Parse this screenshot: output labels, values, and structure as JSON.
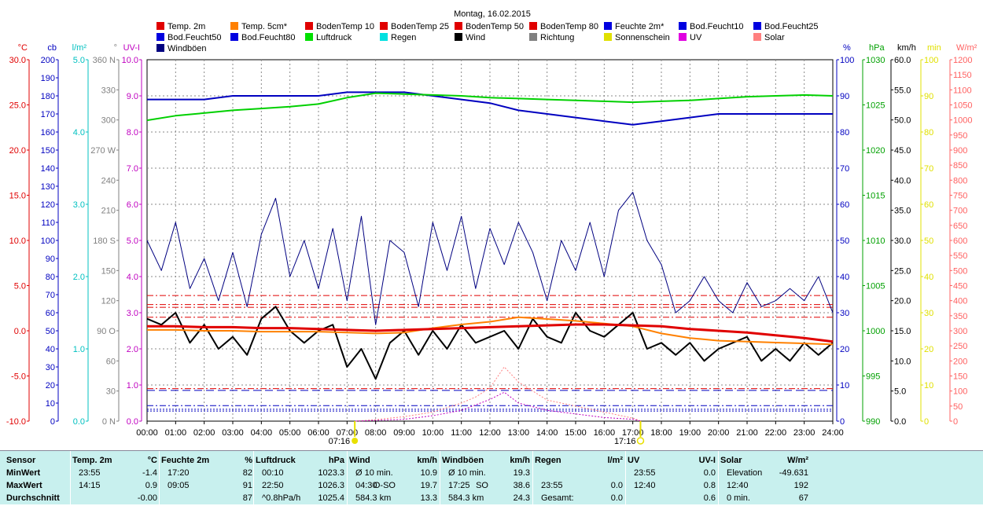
{
  "chart_data": {
    "type": "line",
    "title": "Montag, 16.02.2015",
    "x_ticks": [
      "00:00",
      "01:00",
      "02:00",
      "03:00",
      "04:00",
      "05:00",
      "06:00",
      "07:00",
      "08:00",
      "09:00",
      "10:00",
      "11:00",
      "12:00",
      "13:00",
      "14:00",
      "15:00",
      "16:00",
      "17:00",
      "18:00",
      "19:00",
      "20:00",
      "21:00",
      "22:00",
      "23:00",
      "24:00"
    ],
    "sunrise_label": "07:16",
    "sunset_label": "17:16",
    "legend": [
      {
        "label": "Temp. 2m",
        "color": "#e00000"
      },
      {
        "label": "Temp. 5cm*",
        "color": "#ff8000"
      },
      {
        "label": "BodenTemp 10",
        "color": "#e00000"
      },
      {
        "label": "BodenTemp 25",
        "color": "#e00000"
      },
      {
        "label": "BodenTemp 50",
        "color": "#e00000"
      },
      {
        "label": "BodenTemp 80",
        "color": "#e00000"
      },
      {
        "label": "Feuchte 2m*",
        "color": "#0000e0"
      },
      {
        "label": "Bod.Feucht10",
        "color": "#0000e0"
      },
      {
        "label": "Bod.Feucht25",
        "color": "#0000e0"
      },
      {
        "label": "Bod.Feucht50",
        "color": "#0000e0"
      },
      {
        "label": "Bod.Feucht80",
        "color": "#0000e0"
      },
      {
        "label": "Luftdruck",
        "color": "#00e000"
      },
      {
        "label": "Regen",
        "color": "#00e0e0"
      },
      {
        "label": "Wind",
        "color": "#000000"
      },
      {
        "label": "Richtung",
        "color": "#808080"
      },
      {
        "label": "Sonnenschein",
        "color": "#e0e000"
      },
      {
        "label": "UV",
        "color": "#e000e0"
      },
      {
        "label": "Solar",
        "color": "#ff8080"
      },
      {
        "label": "Windböen",
        "color": "#000080"
      }
    ],
    "axes": [
      {
        "unit": "°C",
        "ticks": [
          "30.0",
          "25.0",
          "20.0",
          "15.0",
          "10.0",
          "5.0",
          "0.0",
          "-5.0",
          "-10.0"
        ],
        "color": "#e00000",
        "range": [
          -10,
          30
        ]
      },
      {
        "unit": "cb",
        "ticks": [
          "200",
          "190",
          "180",
          "170",
          "160",
          "150",
          "140",
          "130",
          "120",
          "110",
          "100",
          "90",
          "80",
          "70",
          "60",
          "50",
          "40",
          "30",
          "20",
          "10",
          "0"
        ],
        "color": "#0000c0",
        "range": [
          0,
          200
        ]
      },
      {
        "unit": "l/m²",
        "ticks": [
          "5.0",
          "4.0",
          "3.0",
          "2.0",
          "1.0",
          "0.0"
        ],
        "color": "#00c0c0",
        "range": [
          0,
          5
        ]
      },
      {
        "unit": "°",
        "ticks": [
          "360 N",
          "330",
          "300",
          "270 W",
          "240",
          "210",
          "180 S",
          "150",
          "120",
          "90 O",
          "60",
          "30",
          "0 N"
        ],
        "color": "#808080",
        "range": [
          0,
          360
        ]
      },
      {
        "unit": "UV-I",
        "ticks": [
          "10.0",
          "9.0",
          "8.0",
          "7.0",
          "6.0",
          "5.0",
          "4.0",
          "3.0",
          "2.0",
          "1.0",
          "0.0"
        ],
        "color": "#c000c0",
        "range": [
          0,
          10
        ]
      },
      {
        "unit": "%",
        "ticks": [
          "100",
          "90",
          "80",
          "70",
          "60",
          "50",
          "40",
          "30",
          "20",
          "10",
          "0"
        ],
        "color": "#0000c0",
        "range": [
          0,
          100
        ]
      },
      {
        "unit": "hPa",
        "ticks": [
          "1030",
          "1025",
          "1020",
          "1015",
          "1010",
          "1005",
          "1000",
          "995",
          "990"
        ],
        "color": "#00a000",
        "range": [
          990,
          1030
        ]
      },
      {
        "unit": "km/h",
        "ticks": [
          "60.0",
          "55.0",
          "50.0",
          "45.0",
          "40.0",
          "35.0",
          "30.0",
          "25.0",
          "20.0",
          "15.0",
          "10.0",
          "5.0",
          "0.0"
        ],
        "color": "#000000",
        "range": [
          0,
          60
        ]
      },
      {
        "unit": "min",
        "ticks": [
          "100",
          "90",
          "80",
          "70",
          "60",
          "50",
          "40",
          "30",
          "20",
          "10",
          "0"
        ],
        "color": "#e0e000",
        "range": [
          0,
          100
        ]
      },
      {
        "unit": "W/m²",
        "ticks": [
          "1200",
          "1150",
          "1100",
          "1050",
          "1000",
          "950",
          "900",
          "850",
          "800",
          "750",
          "700",
          "650",
          "600",
          "550",
          "500",
          "450",
          "400",
          "350",
          "300",
          "250",
          "200",
          "150",
          "100",
          "50",
          "0"
        ],
        "color": "#ff6060",
        "range": [
          0,
          1200
        ]
      }
    ],
    "series": [
      {
        "name": "Luftdruck",
        "unit": "hPa",
        "x_hours": [
          0,
          1,
          2,
          3,
          4,
          5,
          6,
          7,
          8,
          9,
          10,
          11,
          12,
          13,
          14,
          15,
          16,
          17,
          18,
          19,
          20,
          21,
          22,
          23,
          24
        ],
        "values": [
          1023.3,
          1023.8,
          1024.1,
          1024.4,
          1024.6,
          1024.8,
          1025.1,
          1025.8,
          1026.3,
          1026.2,
          1026.1,
          1026.0,
          1025.8,
          1025.7,
          1025.6,
          1025.5,
          1025.4,
          1025.3,
          1025.4,
          1025.5,
          1025.7,
          1025.9,
          1026.0,
          1026.1,
          1026.0
        ]
      },
      {
        "name": "Feuchte 2m*",
        "unit": "%",
        "x_hours": [
          0,
          1,
          2,
          3,
          4,
          5,
          6,
          7,
          8,
          9,
          10,
          11,
          12,
          13,
          14,
          15,
          16,
          17,
          18,
          19,
          20,
          21,
          22,
          23,
          24
        ],
        "values": [
          89,
          89,
          89,
          90,
          90,
          90,
          90,
          91,
          91,
          91,
          90,
          89,
          88,
          86,
          85,
          84,
          83,
          82,
          83,
          84,
          85,
          85,
          85,
          85,
          85
        ]
      },
      {
        "name": "Temp. 2m",
        "unit": "°C",
        "x_hours": [
          0,
          1,
          2,
          3,
          4,
          5,
          6,
          7,
          8,
          9,
          10,
          11,
          12,
          13,
          14,
          15,
          16,
          17,
          18,
          19,
          20,
          21,
          22,
          23,
          24
        ],
        "values": [
          0.5,
          0.5,
          0.4,
          0.4,
          0.3,
          0.3,
          0.2,
          0.1,
          0.0,
          0.1,
          0.2,
          0.3,
          0.4,
          0.5,
          0.6,
          0.7,
          0.7,
          0.6,
          0.5,
          0.2,
          0.0,
          -0.2,
          -0.5,
          -0.8,
          -1.2
        ]
      },
      {
        "name": "Temp. 5cm*",
        "unit": "°C",
        "x_hours": [
          0,
          1,
          2,
          3,
          4,
          5,
          6,
          7,
          8,
          9,
          10,
          11,
          12,
          13,
          14,
          15,
          16,
          17,
          18,
          19,
          20,
          21,
          22,
          23,
          24
        ],
        "values": [
          0.1,
          0.1,
          0.0,
          0.0,
          -0.1,
          -0.1,
          -0.1,
          -0.2,
          -0.3,
          -0.2,
          0.3,
          0.7,
          1.0,
          1.5,
          1.3,
          1.1,
          0.8,
          0.5,
          -0.3,
          -0.8,
          -1.1,
          -1.2,
          -1.3,
          -1.4,
          -1.5
        ]
      },
      {
        "name": "Wind",
        "unit": "km/h",
        "x_hours": [
          0,
          0.5,
          1,
          1.5,
          2,
          2.5,
          3,
          3.5,
          4,
          4.5,
          5,
          5.5,
          6,
          6.5,
          7,
          7.5,
          8,
          8.5,
          9,
          9.5,
          10,
          10.5,
          11,
          11.5,
          12,
          12.5,
          13,
          13.5,
          14,
          14.5,
          15,
          15.5,
          16,
          16.5,
          17,
          17.5,
          18,
          18.5,
          19,
          19.5,
          20,
          20.5,
          21,
          21.5,
          22,
          22.5,
          23,
          23.5,
          24
        ],
        "values": [
          17,
          16,
          18,
          13,
          16,
          12,
          14,
          11,
          17,
          19,
          15,
          13,
          15,
          16,
          9,
          12,
          7,
          13,
          15,
          11,
          15,
          12,
          16,
          13,
          14,
          15,
          12,
          17,
          14,
          13,
          18,
          15,
          14,
          16,
          18,
          12,
          13,
          11,
          13,
          10,
          12,
          13,
          14,
          10,
          12,
          10,
          13,
          11,
          13
        ]
      },
      {
        "name": "Windböen",
        "unit": "km/h",
        "x_hours": [
          0,
          0.5,
          1,
          1.5,
          2,
          2.5,
          3,
          3.5,
          4,
          4.5,
          5,
          5.5,
          6,
          6.5,
          7,
          7.5,
          8,
          8.5,
          9,
          9.5,
          10,
          10.5,
          11,
          11.5,
          12,
          12.5,
          13,
          13.5,
          14,
          14.5,
          15,
          15.5,
          16,
          16.5,
          17,
          17.5,
          18,
          18.5,
          19,
          19.5,
          20,
          20.5,
          21,
          21.5,
          22,
          22.5,
          23,
          23.5,
          24
        ],
        "values": [
          30,
          25,
          33,
          22,
          27,
          20,
          28,
          19,
          31,
          37,
          24,
          30,
          22,
          32,
          20,
          34,
          16,
          30,
          28,
          19,
          33,
          25,
          34,
          22,
          32,
          26,
          33,
          28,
          20,
          30,
          25,
          33,
          24,
          35,
          38,
          30,
          26,
          18,
          20,
          24,
          20,
          18,
          23,
          19,
          20,
          22,
          20,
          24,
          18
        ]
      },
      {
        "name": "Solar",
        "unit": "W/m²",
        "x_hours": [
          7.3,
          8,
          9,
          10,
          11,
          11.5,
          12,
          12.5,
          13,
          13.5,
          14,
          15,
          16,
          17,
          17.3
        ],
        "values": [
          0,
          5,
          15,
          30,
          60,
          80,
          110,
          180,
          130,
          100,
          70,
          50,
          30,
          10,
          0
        ]
      },
      {
        "name": "UV",
        "unit": "UV-I",
        "x_hours": [
          7.3,
          9,
          10,
          11,
          12,
          12.5,
          13,
          13.5,
          14,
          15,
          16,
          17,
          17.3
        ],
        "values": [
          0,
          0.05,
          0.15,
          0.3,
          0.6,
          0.8,
          0.5,
          0.4,
          0.3,
          0.2,
          0.1,
          0.05,
          0
        ]
      }
    ],
    "reference_lines": [
      {
        "name": "BodenTemp 10",
        "unit": "°C",
        "value": 3.9,
        "style": "dash-dot"
      },
      {
        "name": "BodenTemp 25",
        "unit": "°C",
        "value": 2.6,
        "style": "dash-dot"
      },
      {
        "name": "BodenTemp 50",
        "unit": "°C",
        "value": 1.5,
        "style": "dash-dot"
      },
      {
        "name": "BodenTemp 80",
        "unit": "°C",
        "value": 2.9,
        "style": "dash-dot"
      },
      {
        "name": "BodenTemp 10 (2)",
        "unit": "°C",
        "value": -6.4,
        "style": "dash-dot"
      },
      {
        "name": "Bod.Feucht10",
        "unit": "%",
        "value": 8.5,
        "style": "dash"
      },
      {
        "name": "Bod.Feucht25",
        "unit": "%",
        "value": 2.8,
        "style": "dot"
      },
      {
        "name": "Bod.Feucht50",
        "unit": "%",
        "value": 3.3,
        "style": "dot"
      },
      {
        "name": "Bod.Feucht80",
        "unit": "%",
        "value": 4.3,
        "style": "dash-dot"
      }
    ]
  },
  "stats": {
    "headers": {
      "sensor": "Sensor",
      "temp": "Temp. 2m",
      "temp_unit": "°C",
      "hum": "Feuchte 2m",
      "hum_unit": "%",
      "press": "Luftdruck",
      "press_unit": "hPa",
      "wind": "Wind",
      "wind_unit": "km/h",
      "gust": "Windböen",
      "gust_unit": "km/h",
      "rain": "Regen",
      "rain_unit": "l/m²",
      "uv": "UV",
      "uv_unit": "UV-I",
      "solar": "Solar",
      "solar_unit": "W/m²"
    },
    "rows": [
      {
        "label": "MinWert",
        "temp_t": "23:55",
        "temp_v": "-1.4",
        "hum_t": "17:20",
        "hum_v": "82",
        "press_t": "00:10",
        "press_v": "1023.3",
        "wind_t": "Ø 10 min.",
        "wind_m": "",
        "wind_v": "10.9",
        "gust_t": "Ø 10 min.",
        "gust_m": "",
        "gust_v": "19.3",
        "rain_t": "",
        "rain_v": "",
        "uv_t": "23:55",
        "uv_v": "0.0",
        "solar_t": "Elevation",
        "solar_v": "-49.631"
      },
      {
        "label": "MaxWert",
        "temp_t": "14:15",
        "temp_v": "0.9",
        "hum_t": "09:05",
        "hum_v": "91",
        "press_t": "22:50",
        "press_v": "1026.3",
        "wind_t": "04:30",
        "wind_m": "O-SO",
        "wind_v": "19.7",
        "gust_t": "17:25",
        "gust_m": "SO",
        "gust_v": "38.6",
        "rain_t": "23:55",
        "rain_v": "0.0",
        "uv_t": "12:40",
        "uv_v": "0.8",
        "solar_t": "12:40",
        "solar_v": "192"
      },
      {
        "label": "Durchschnitt",
        "temp_t": "",
        "temp_v": "-0.00",
        "hum_t": "",
        "hum_v": "87",
        "press_t": "^0.8hPa/h",
        "press_v": "1025.4",
        "wind_t": "584.3 km",
        "wind_m": "",
        "wind_v": "13.3",
        "gust_t": "584.3 km",
        "gust_m": "",
        "gust_v": "24.3",
        "rain_t": "Gesamt:",
        "rain_v": "0.0",
        "uv_t": "",
        "uv_v": "0.6",
        "solar_t": "0 min.",
        "solar_v": "67"
      }
    ]
  }
}
